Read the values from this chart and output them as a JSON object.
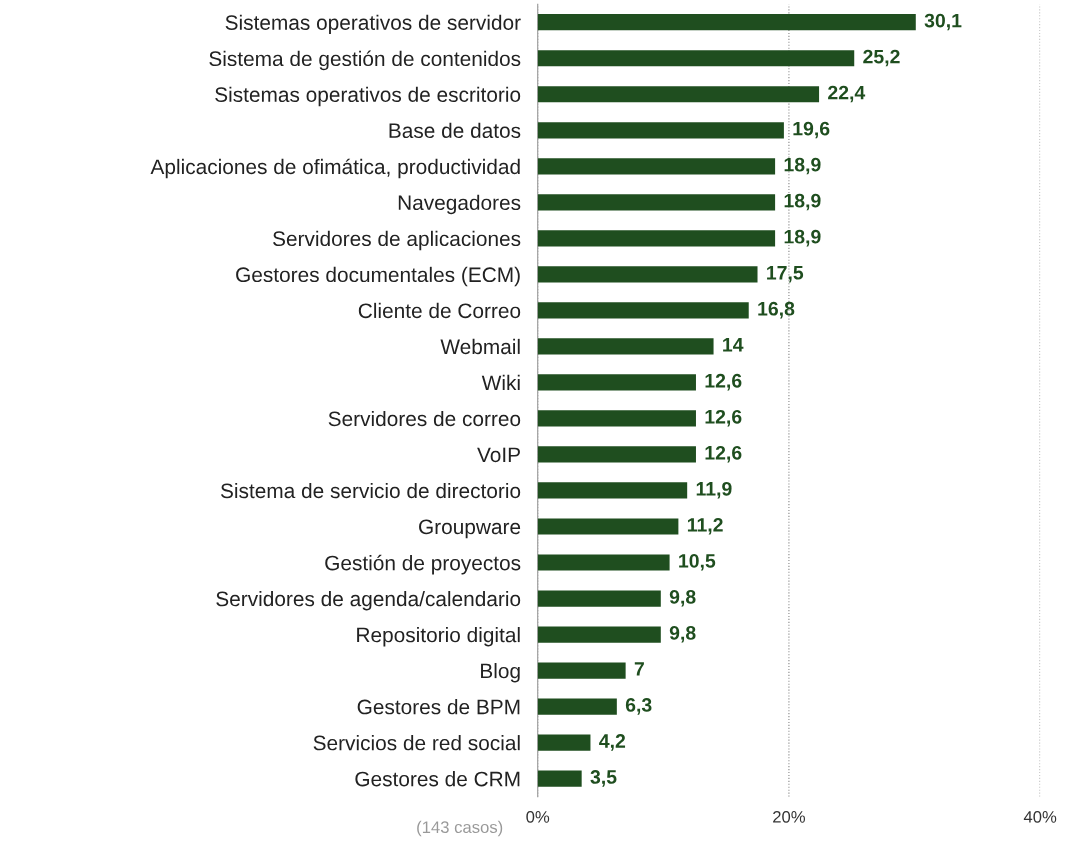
{
  "chart_data": {
    "type": "bar",
    "orientation": "horizontal",
    "categories": [
      "Sistemas operativos de servidor",
      "Sistema de gestión de contenidos",
      "Sistemas operativos de escritorio",
      "Base de datos",
      "Aplicaciones de ofimática, productividad",
      "Navegadores",
      "Servidores de aplicaciones",
      "Gestores documentales (ECM)",
      "Cliente de Correo",
      "Webmail",
      "Wiki",
      "Servidores de correo",
      "VoIP",
      "Sistema de servicio de directorio",
      "Groupware",
      "Gestión de proyectos",
      "Servidores de agenda/calendario",
      "Repositorio digital",
      "Blog",
      "Gestores de BPM",
      "Servicios de red social",
      "Gestores de CRM"
    ],
    "values": [
      30.1,
      25.2,
      22.4,
      19.6,
      18.9,
      18.9,
      18.9,
      17.5,
      16.8,
      14,
      12.6,
      12.6,
      12.6,
      11.9,
      11.2,
      10.5,
      9.8,
      9.8,
      7,
      6.3,
      4.2,
      3.5
    ],
    "value_labels": [
      "30,1",
      "25,2",
      "22,4",
      "19,6",
      "18,9",
      "18,9",
      "18,9",
      "17,5",
      "16,8",
      "14",
      "12,6",
      "12,6",
      "12,6",
      "11,9",
      "11,2",
      "10,5",
      "9,8",
      "9,8",
      "7",
      "6,3",
      "4,2",
      "3,5"
    ],
    "color": "#1f4e1f",
    "xlim": [
      0,
      40
    ],
    "xticks": [
      {
        "value": 0,
        "label": "0%"
      },
      {
        "value": 20,
        "label": "20%"
      },
      {
        "value": 40,
        "label": "40%"
      }
    ],
    "grid": "x",
    "annotations": [
      "(143 casos)"
    ]
  }
}
